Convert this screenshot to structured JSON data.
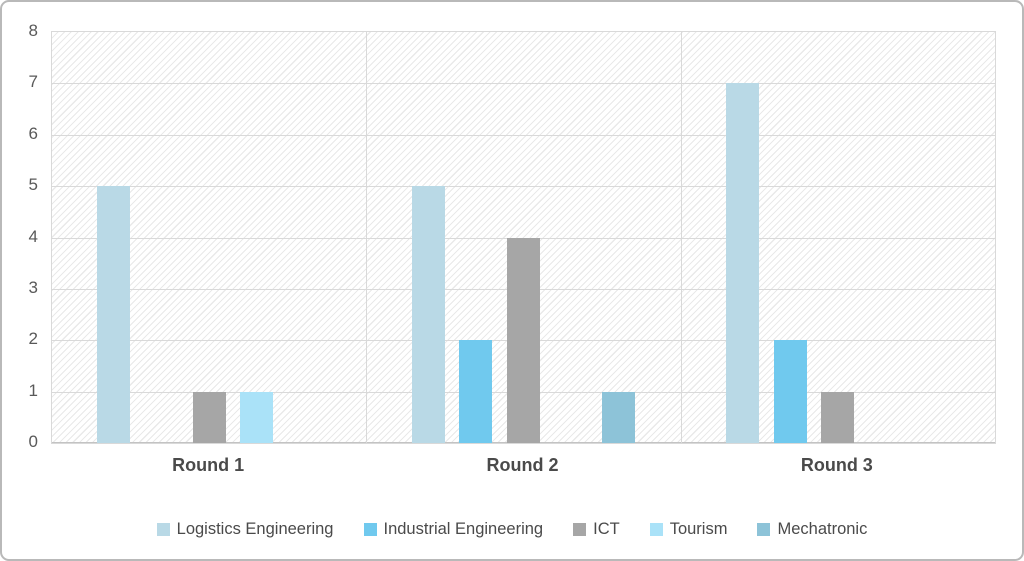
{
  "chart_data": {
    "type": "bar",
    "title": "",
    "categories": [
      "Round 1",
      "Round 2",
      "Round 3"
    ],
    "series": [
      {
        "name": "Logistics Engineering",
        "color": "#b9d9e6",
        "values": [
          5,
          5,
          7
        ]
      },
      {
        "name": "Industrial Engineering",
        "color": "#70c9ee",
        "values": [
          0,
          2,
          2
        ]
      },
      {
        "name": "ICT",
        "color": "#a6a6a6",
        "values": [
          1,
          4,
          1
        ]
      },
      {
        "name": "Tourism",
        "color": "#aae2f8",
        "values": [
          1,
          0,
          0
        ]
      },
      {
        "name": "Mechatronic",
        "color": "#8dc3d8",
        "values": [
          0,
          1,
          0
        ]
      }
    ],
    "ylim": [
      0,
      8
    ],
    "ytick_step": 1,
    "yticks": [
      "0",
      "1",
      "2",
      "3",
      "4",
      "5",
      "6",
      "7",
      "8"
    ],
    "grid": true,
    "legend_position": "bottom",
    "plot_background": "light-diagonal-hatch",
    "colors": {
      "gridline": "#d9d9d9",
      "axis_text": "#595959",
      "category_text": "#4a4a4a",
      "frame_border": "#b9b9b9"
    }
  }
}
